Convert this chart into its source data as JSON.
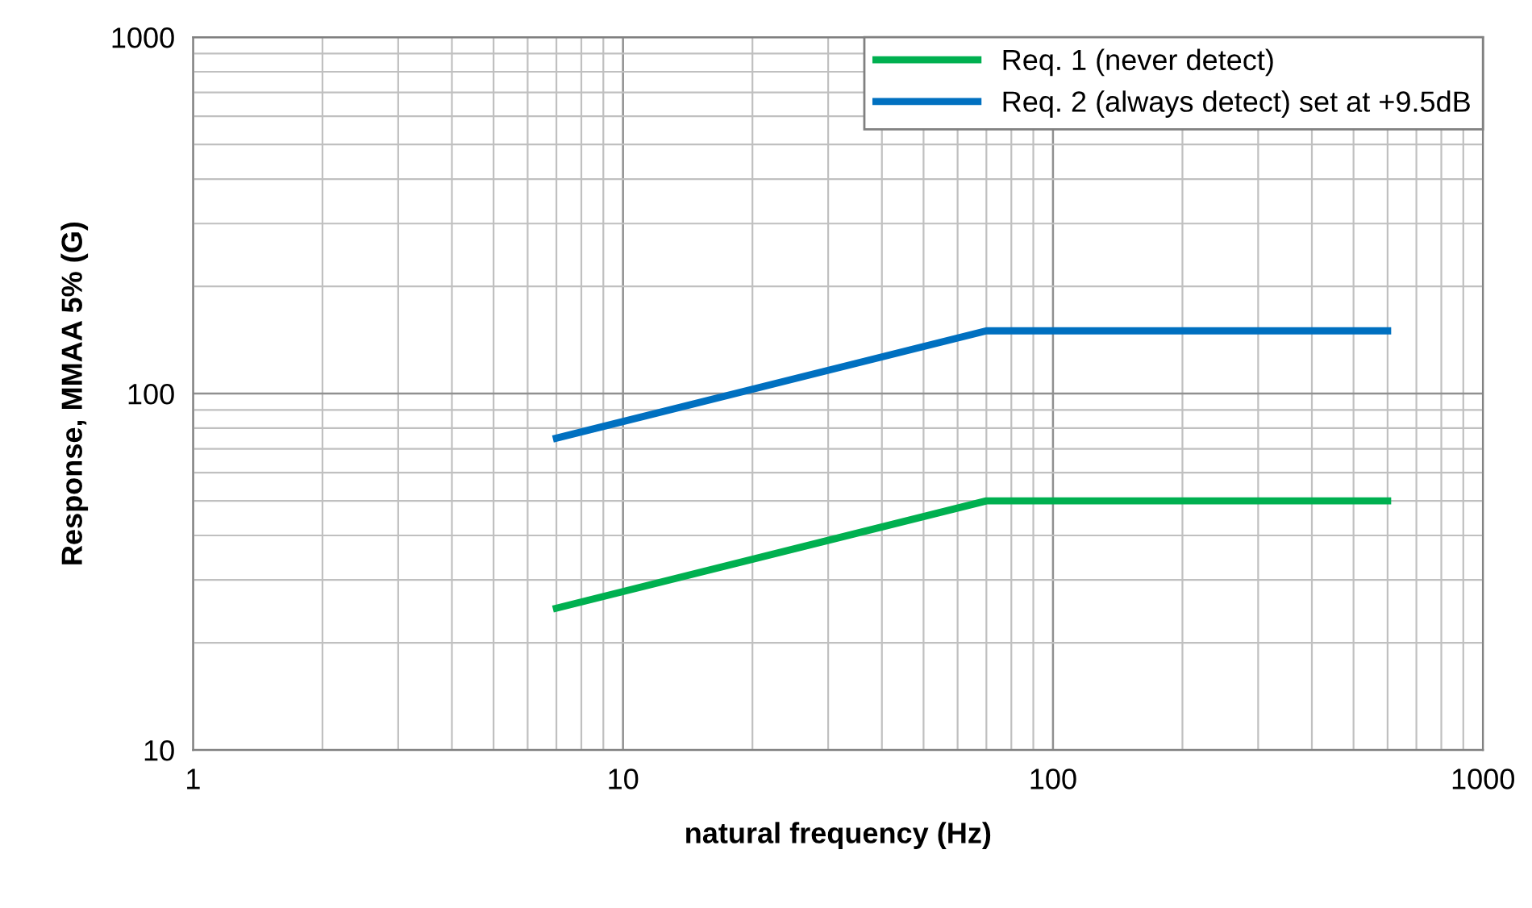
{
  "chart_data": {
    "type": "line",
    "xlabel": "natural frequency (Hz)",
    "ylabel": "Response, MMAA 5% (G)",
    "log": "xy",
    "grid": true,
    "legend": "top right",
    "marker": "none",
    "line_style": "solid",
    "xlim": [
      1,
      1000
    ],
    "ylim": [
      10,
      1000
    ],
    "xticks": [
      1,
      10,
      100,
      1000
    ],
    "yticks": [
      10,
      100,
      1000
    ],
    "series": [
      {
        "name": "Req. 1 (never detect)",
        "color": "#00b050",
        "x": [
          7,
          70,
          600
        ],
        "values": [
          25,
          50,
          50
        ]
      },
      {
        "name": "Req. 2 (always detect) set at +9.5dB",
        "color": "#0070c0",
        "x": [
          7,
          70,
          600
        ],
        "values": [
          75,
          150,
          150
        ]
      }
    ]
  }
}
